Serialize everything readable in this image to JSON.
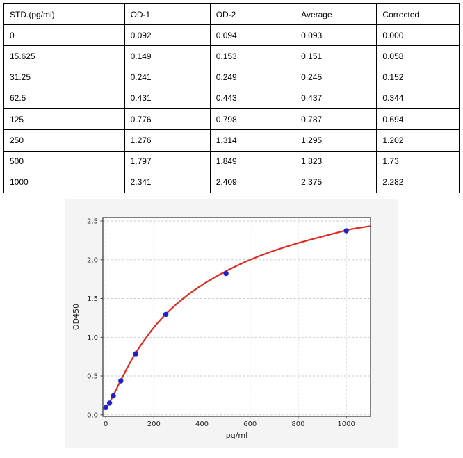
{
  "table": {
    "headers": [
      "STD.(pg/ml)",
      "OD-1",
      "OD-2",
      "Average",
      "Corrected"
    ],
    "rows": [
      [
        "0",
        "0.092",
        "0.094",
        "0.093",
        "0.000"
      ],
      [
        "15.625",
        "0.149",
        "0.153",
        "0.151",
        "0.058"
      ],
      [
        "31.25",
        "0.241",
        "0.249",
        "0.245",
        "0.152"
      ],
      [
        "62.5",
        "0.431",
        "0.443",
        "0.437",
        "0.344"
      ],
      [
        "125",
        "0.776",
        "0.798",
        "0.787",
        "0.694"
      ],
      [
        "250",
        "1.276",
        "1.314",
        "1.295",
        "1.202"
      ],
      [
        "500",
        "1.797",
        "1.849",
        "1.823",
        "1.73"
      ],
      [
        "1000",
        "2.341",
        "2.409",
        "2.375",
        "2.282"
      ]
    ]
  },
  "chart_data": {
    "type": "scatter",
    "title": "",
    "xlabel": "pg/ml",
    "ylabel": "OD450",
    "xlim": [
      -12,
      1101
    ],
    "ylim": [
      -0.02,
      2.545
    ],
    "x_ticks": [
      0,
      200,
      400,
      600,
      800,
      1000
    ],
    "y_ticks": [
      0,
      0.5,
      1,
      1.5,
      2,
      2.5
    ],
    "grid": true,
    "legend": "none",
    "series": [
      {
        "name": "standard-points",
        "type": "scatter",
        "x": [
          0,
          15.625,
          31.25,
          62.5,
          125,
          250,
          500,
          1000
        ],
        "y": [
          0.093,
          0.151,
          0.245,
          0.437,
          0.787,
          1.295,
          1.823,
          2.375
        ],
        "color": "#1f1fd2"
      },
      {
        "name": "fit-curve",
        "type": "line",
        "x": [
          -12,
          0,
          15.625,
          31.25,
          62.5,
          125,
          250,
          500,
          1000,
          1100
        ],
        "y": [
          0.072,
          0.082,
          0.158,
          0.248,
          0.445,
          0.8,
          1.3,
          1.853,
          2.38,
          2.435
        ],
        "color": "#e32a20"
      }
    ],
    "colors": {
      "panel_bg": "#f4f4f4",
      "plot_bg": "#ffffff",
      "grid": "#c8c8c8",
      "frame": "#4c4c4c",
      "tick_text": "#262626"
    }
  }
}
